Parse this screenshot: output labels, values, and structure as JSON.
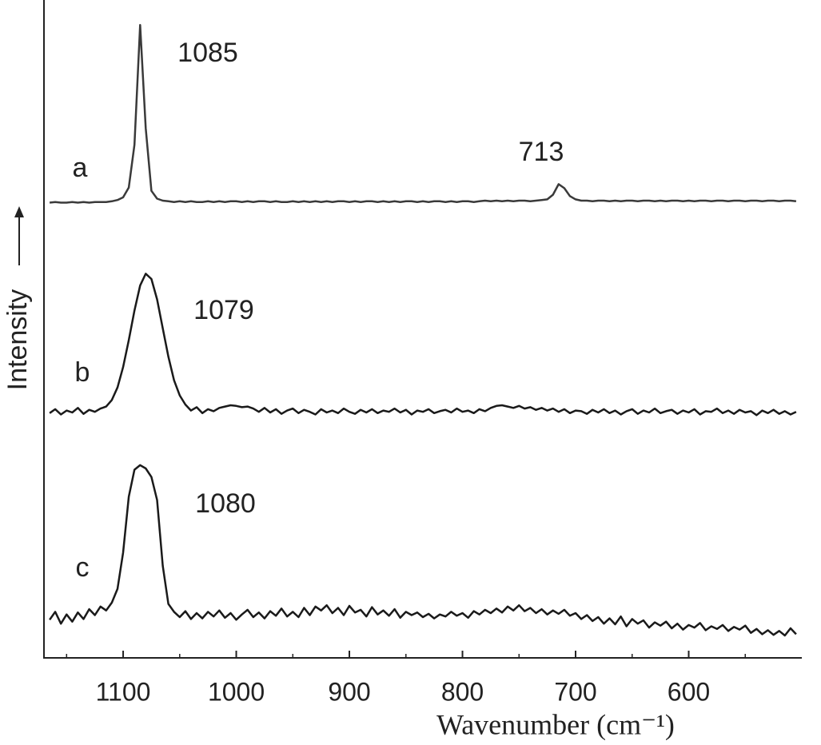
{
  "chart_data": {
    "type": "line",
    "xlabel": "Wavenumber (cm⁻¹)",
    "ylabel": "Intensity",
    "xlim": [
      1170,
      500
    ],
    "ylim": [
      0,
      100
    ],
    "xticks": [
      1100,
      1000,
      900,
      800,
      700,
      600
    ],
    "xminorticks": [
      1150,
      1050,
      950,
      850,
      750,
      650,
      550
    ],
    "annotations": [
      "1085",
      "713",
      "1079",
      "1080"
    ],
    "x": [
      1165,
      1160,
      1155,
      1150,
      1145,
      1140,
      1135,
      1130,
      1125,
      1120,
      1115,
      1110,
      1105,
      1100,
      1095,
      1090,
      1085,
      1080,
      1075,
      1070,
      1065,
      1060,
      1055,
      1050,
      1045,
      1040,
      1035,
      1030,
      1025,
      1020,
      1015,
      1010,
      1005,
      1000,
      995,
      990,
      985,
      980,
      975,
      970,
      965,
      960,
      955,
      950,
      945,
      940,
      935,
      930,
      925,
      920,
      915,
      910,
      905,
      900,
      895,
      890,
      885,
      880,
      875,
      870,
      865,
      860,
      855,
      850,
      845,
      840,
      835,
      830,
      825,
      820,
      815,
      810,
      805,
      800,
      795,
      790,
      785,
      780,
      775,
      770,
      765,
      760,
      755,
      750,
      745,
      740,
      735,
      730,
      725,
      720,
      715,
      710,
      705,
      700,
      695,
      690,
      685,
      680,
      675,
      670,
      665,
      660,
      655,
      650,
      645,
      640,
      635,
      630,
      625,
      620,
      615,
      610,
      605,
      600,
      595,
      590,
      585,
      580,
      575,
      570,
      565,
      560,
      555,
      550,
      545,
      540,
      535,
      530,
      525,
      520,
      515,
      510,
      505
    ],
    "series": [
      {
        "name": "a",
        "color": "#3a3a3a",
        "values": [
          69.2,
          69.3,
          69.2,
          69.2,
          69.3,
          69.2,
          69.3,
          69.2,
          69.3,
          69.3,
          69.3,
          69.4,
          69.6,
          70.0,
          71.5,
          78.0,
          96.2,
          80.5,
          71.0,
          69.8,
          69.5,
          69.4,
          69.3,
          69.4,
          69.3,
          69.4,
          69.3,
          69.3,
          69.4,
          69.3,
          69.4,
          69.3,
          69.4,
          69.4,
          69.3,
          69.4,
          69.3,
          69.4,
          69.4,
          69.3,
          69.4,
          69.3,
          69.3,
          69.4,
          69.3,
          69.4,
          69.3,
          69.4,
          69.3,
          69.4,
          69.3,
          69.4,
          69.4,
          69.3,
          69.4,
          69.3,
          69.4,
          69.4,
          69.3,
          69.4,
          69.3,
          69.4,
          69.3,
          69.4,
          69.4,
          69.3,
          69.4,
          69.3,
          69.4,
          69.4,
          69.3,
          69.4,
          69.3,
          69.4,
          69.4,
          69.3,
          69.4,
          69.5,
          69.4,
          69.5,
          69.4,
          69.5,
          69.4,
          69.5,
          69.5,
          69.4,
          69.5,
          69.6,
          69.7,
          70.4,
          72.0,
          71.4,
          70.2,
          69.7,
          69.5,
          69.5,
          69.4,
          69.5,
          69.5,
          69.4,
          69.5,
          69.4,
          69.5,
          69.5,
          69.4,
          69.5,
          69.5,
          69.4,
          69.5,
          69.4,
          69.5,
          69.5,
          69.4,
          69.5,
          69.4,
          69.5,
          69.5,
          69.4,
          69.5,
          69.5,
          69.4,
          69.5,
          69.5,
          69.4,
          69.5,
          69.5,
          69.4,
          69.5,
          69.5,
          69.4,
          69.5,
          69.5,
          69.4
        ]
      },
      {
        "name": "b",
        "color": "#1a1a1a",
        "values": [
          37.2,
          37.8,
          37.0,
          37.6,
          37.3,
          38.0,
          37.1,
          37.7,
          37.4,
          37.9,
          38.2,
          39.2,
          41.1,
          44.2,
          48.3,
          52.8,
          56.6,
          58.4,
          57.6,
          54.5,
          50.1,
          45.8,
          42.2,
          39.9,
          38.5,
          37.6,
          38.1,
          37.2,
          37.8,
          37.5,
          38.0,
          38.2,
          38.4,
          38.3,
          38.1,
          38.2,
          37.9,
          37.4,
          38.0,
          37.3,
          37.8,
          37.1,
          37.6,
          37.9,
          37.2,
          37.7,
          37.4,
          37.0,
          37.8,
          37.3,
          37.6,
          37.2,
          37.9,
          37.4,
          37.1,
          37.7,
          37.3,
          37.8,
          37.2,
          37.6,
          37.4,
          37.9,
          37.3,
          37.7,
          37.0,
          37.6,
          37.4,
          37.8,
          37.2,
          37.5,
          37.7,
          37.3,
          37.9,
          37.4,
          37.6,
          37.2,
          37.8,
          37.5,
          38.0,
          38.3,
          38.4,
          38.2,
          38.0,
          38.3,
          37.9,
          38.1,
          37.7,
          38.0,
          37.6,
          37.9,
          37.4,
          37.8,
          37.2,
          37.6,
          37.5,
          37.1,
          37.7,
          37.3,
          37.8,
          37.2,
          37.6,
          37.0,
          37.5,
          37.8,
          37.1,
          37.6,
          37.3,
          37.9,
          37.2,
          37.5,
          37.7,
          37.1,
          37.6,
          37.3,
          37.8,
          37.0,
          37.5,
          37.4,
          37.9,
          37.2,
          37.6,
          37.1,
          37.7,
          37.3,
          37.5,
          36.9,
          37.6,
          37.2,
          37.7,
          37.1,
          37.5,
          37.0,
          37.4
        ]
      },
      {
        "name": "c",
        "color": "#1a1a1a",
        "values": [
          5.8,
          7.0,
          5.2,
          6.6,
          5.5,
          6.9,
          5.9,
          7.4,
          6.5,
          7.8,
          7.2,
          8.4,
          10.5,
          16.0,
          24.5,
          28.6,
          29.3,
          28.8,
          27.5,
          24.0,
          14.0,
          8.2,
          7.0,
          6.2,
          7.1,
          5.9,
          6.8,
          6.0,
          7.0,
          6.3,
          7.2,
          6.1,
          6.8,
          5.8,
          6.6,
          7.3,
          6.2,
          6.9,
          6.0,
          7.1,
          6.4,
          7.5,
          6.3,
          7.0,
          6.2,
          7.6,
          6.5,
          7.8,
          7.2,
          8.0,
          6.8,
          7.6,
          6.5,
          7.9,
          6.9,
          7.3,
          6.3,
          7.7,
          6.6,
          7.2,
          6.4,
          7.4,
          6.1,
          7.0,
          6.5,
          6.9,
          6.2,
          6.7,
          6.0,
          6.6,
          6.3,
          7.0,
          6.4,
          6.8,
          6.1,
          7.1,
          6.6,
          7.3,
          6.8,
          7.5,
          6.9,
          7.8,
          7.2,
          8.0,
          7.1,
          7.6,
          6.8,
          7.4,
          6.6,
          7.2,
          6.7,
          7.3,
          6.4,
          6.8,
          5.9,
          6.5,
          5.6,
          6.2,
          5.2,
          6.0,
          5.1,
          6.3,
          4.8,
          5.9,
          5.2,
          5.7,
          4.6,
          5.4,
          4.9,
          5.5,
          4.5,
          5.2,
          4.3,
          5.0,
          4.6,
          5.3,
          4.2,
          4.8,
          4.4,
          5.0,
          4.1,
          4.7,
          4.3,
          4.9,
          3.8,
          4.4,
          3.6,
          4.2,
          3.5,
          4.1,
          3.4,
          4.5,
          3.6
        ]
      }
    ]
  }
}
